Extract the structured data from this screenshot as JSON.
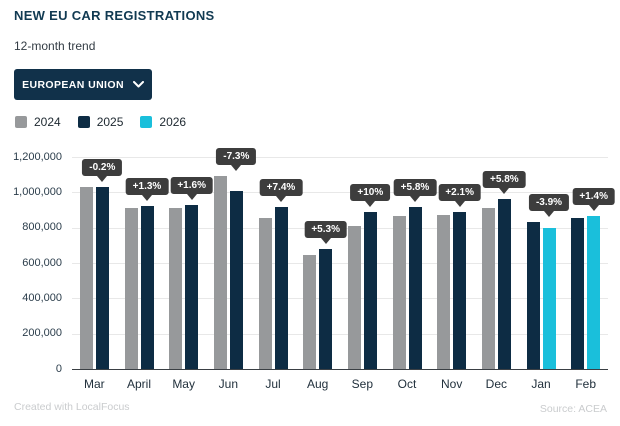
{
  "header": {
    "title": "NEW EU CAR REGISTRATIONS",
    "subtitle": "12-month trend",
    "dropdown": {
      "label": "EUROPEAN UNION"
    }
  },
  "legend": [
    {
      "label": "2024",
      "color": "#97999b"
    },
    {
      "label": "2025",
      "color": "#0d2c44"
    },
    {
      "label": "2026",
      "color": "#1abfdb"
    }
  ],
  "footer": {
    "left": "Created with LocalFocus",
    "right": "Source: ACEA"
  },
  "chart_data": {
    "type": "bar",
    "title": "NEW EU CAR REGISTRATIONS",
    "subtitle": "12-month trend",
    "grid": true,
    "legend_position": "top-left",
    "ylabel": "",
    "xlabel": "",
    "ylim": [
      0,
      1200000
    ],
    "yticks": [
      {
        "value": 0,
        "label": "0"
      },
      {
        "value": 200000,
        "label": "200,000"
      },
      {
        "value": 400000,
        "label": "400,000"
      },
      {
        "value": 600000,
        "label": "600,000"
      },
      {
        "value": 800000,
        "label": "800,000"
      },
      {
        "value": 1000000,
        "label": "1,000,000"
      },
      {
        "value": 1200000,
        "label": "1,200,000"
      }
    ],
    "year_colors": {
      "2024": "#97999b",
      "2025": "#0d2c44",
      "2026": "#1abfdb"
    },
    "months": [
      {
        "label": "Mar",
        "change": "-0.2%",
        "bars": [
          {
            "year": "2024",
            "value": 1032000
          },
          {
            "year": "2025",
            "value": 1030000
          }
        ]
      },
      {
        "label": "April",
        "change": "+1.3%",
        "bars": [
          {
            "year": "2024",
            "value": 914000
          },
          {
            "year": "2025",
            "value": 925000
          }
        ]
      },
      {
        "label": "May",
        "change": "+1.6%",
        "bars": [
          {
            "year": "2024",
            "value": 912000
          },
          {
            "year": "2025",
            "value": 927000
          }
        ]
      },
      {
        "label": "Jun",
        "change": "-7.3%",
        "bars": [
          {
            "year": "2024",
            "value": 1090000
          },
          {
            "year": "2025",
            "value": 1010000
          }
        ]
      },
      {
        "label": "Jul",
        "change": "+7.4%",
        "bars": [
          {
            "year": "2024",
            "value": 852000
          },
          {
            "year": "2025",
            "value": 915000
          }
        ]
      },
      {
        "label": "Aug",
        "change": "+5.3%",
        "bars": [
          {
            "year": "2024",
            "value": 644000
          },
          {
            "year": "2025",
            "value": 678000
          }
        ]
      },
      {
        "label": "Sep",
        "change": "+10%",
        "bars": [
          {
            "year": "2024",
            "value": 809000
          },
          {
            "year": "2025",
            "value": 889000
          }
        ]
      },
      {
        "label": "Oct",
        "change": "+5.8%",
        "bars": [
          {
            "year": "2024",
            "value": 866000
          },
          {
            "year": "2025",
            "value": 917000
          }
        ]
      },
      {
        "label": "Nov",
        "change": "+2.1%",
        "bars": [
          {
            "year": "2024",
            "value": 870000
          },
          {
            "year": "2025",
            "value": 888000
          }
        ]
      },
      {
        "label": "Dec",
        "change": "+5.8%",
        "bars": [
          {
            "year": "2024",
            "value": 911000
          },
          {
            "year": "2025",
            "value": 963000
          }
        ]
      },
      {
        "label": "Jan",
        "change": "-3.9%",
        "bars": [
          {
            "year": "2025",
            "value": 831000
          },
          {
            "year": "2026",
            "value": 799000
          }
        ]
      },
      {
        "label": "Feb",
        "change": "+1.4%",
        "bars": [
          {
            "year": "2025",
            "value": 854000
          },
          {
            "year": "2026",
            "value": 866000
          }
        ]
      }
    ]
  }
}
